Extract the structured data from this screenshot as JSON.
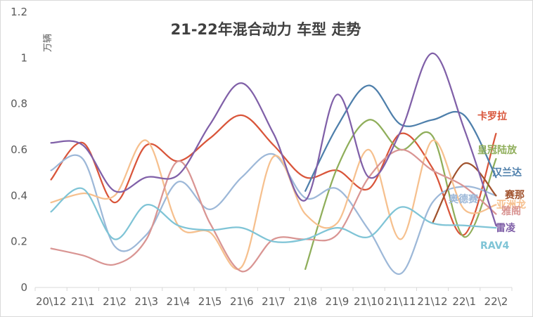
{
  "chart_data": {
    "type": "line",
    "title": "21-22年混合动力 车型 走势",
    "ylabel": "万辆",
    "xlabel": "",
    "ylim": [
      0,
      1.2
    ],
    "yticks": [
      "0",
      "0.2",
      "0.4",
      "0.6",
      "0.8",
      "1",
      "1.2"
    ],
    "categories": [
      "20\\12",
      "21\\1",
      "21\\2",
      "21\\3",
      "21\\4",
      "21\\5",
      "21\\6",
      "21\\7",
      "21\\8",
      "21\\9",
      "21\\10",
      "21\\11",
      "21\\12",
      "22\\1",
      "22\\2"
    ],
    "grid": false,
    "legend": "none",
    "series": [
      {
        "name": "卡罗拉",
        "color": "#d9553a",
        "values": [
          0.47,
          0.63,
          0.37,
          0.62,
          0.55,
          0.65,
          0.75,
          0.62,
          0.48,
          0.51,
          0.43,
          0.67,
          0.52,
          0.23,
          0.67
        ]
      },
      {
        "name": "皇冠陆放",
        "color": "#8fae5a",
        "values": [
          null,
          null,
          null,
          null,
          null,
          null,
          null,
          null,
          0.08,
          0.52,
          0.73,
          0.6,
          0.66,
          0.22,
          0.56
        ]
      },
      {
        "name": "汉兰达",
        "color": "#4e7fab",
        "values": [
          null,
          null,
          null,
          null,
          null,
          null,
          null,
          null,
          0.42,
          0.7,
          0.88,
          0.71,
          0.73,
          0.75,
          0.48
        ]
      },
      {
        "name": "奥德赛",
        "color": "#9db8d8",
        "values": [
          0.51,
          0.56,
          0.18,
          0.23,
          0.46,
          0.34,
          0.48,
          0.58,
          0.39,
          0.43,
          0.25,
          0.06,
          0.37,
          0.44,
          0.4
        ]
      },
      {
        "name": "赛那",
        "color": "#a0522d",
        "values": [
          null,
          null,
          null,
          null,
          null,
          null,
          null,
          null,
          null,
          null,
          null,
          null,
          0.28,
          0.54,
          0.4
        ]
      },
      {
        "name": "亚洲龙",
        "color": "#f6c08e",
        "values": [
          0.37,
          0.41,
          0.4,
          0.64,
          0.27,
          0.24,
          0.09,
          0.57,
          0.32,
          0.28,
          0.6,
          0.21,
          0.64,
          0.34,
          0.36
        ]
      },
      {
        "name": "雅阁",
        "color": "#d99593",
        "values": [
          0.17,
          0.14,
          0.1,
          0.21,
          0.55,
          0.28,
          0.07,
          0.21,
          0.21,
          0.23,
          0.48,
          0.6,
          0.51,
          0.44,
          0.32
        ]
      },
      {
        "name": "雷凌",
        "color": "#8060a8",
        "values": [
          0.63,
          0.62,
          0.42,
          0.48,
          0.49,
          0.71,
          0.89,
          0.67,
          0.38,
          0.84,
          0.48,
          0.68,
          1.02,
          0.69,
          0.27
        ]
      },
      {
        "name": "RAV4",
        "color": "#7fc4d6",
        "values": [
          0.33,
          0.43,
          0.21,
          0.36,
          0.27,
          0.25,
          0.26,
          0.2,
          0.21,
          0.26,
          0.22,
          0.35,
          0.28,
          0.27,
          0.26
        ]
      }
    ]
  }
}
